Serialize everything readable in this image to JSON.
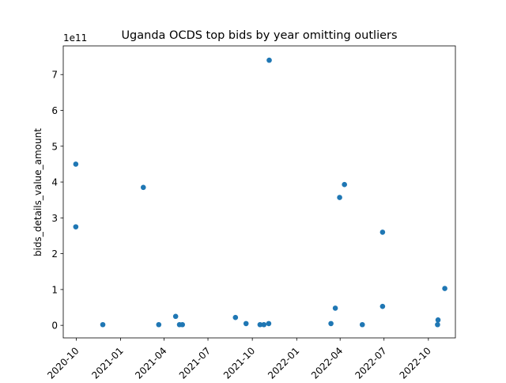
{
  "chart_data": {
    "type": "scatter",
    "title": "Uganda OCDS top bids by year omitting outliers",
    "xlabel": "",
    "ylabel": "bids_details_value_amount",
    "y_offset_label": "1e11",
    "x_tick_labels": [
      "2020-10",
      "2021-01",
      "2021-04",
      "2021-07",
      "2021-10",
      "2022-01",
      "2022-04",
      "2022-07",
      "2022-10"
    ],
    "x_ticks": [
      "2020-10-01",
      "2021-01-01",
      "2021-04-01",
      "2021-07-01",
      "2021-10-01",
      "2022-01-01",
      "2022-04-01",
      "2022-07-01",
      "2022-10-01"
    ],
    "xlim": [
      "2020-09-04",
      "2022-11-26"
    ],
    "y_tick_labels": [
      "0",
      "1",
      "2",
      "3",
      "4",
      "5",
      "6",
      "7"
    ],
    "y_ticks": [
      0,
      1,
      2,
      3,
      4,
      5,
      6,
      7
    ],
    "ylim": [
      -0.35,
      7.8
    ],
    "y_unit_multiplier": "1e11",
    "grid": false,
    "legend": null,
    "marker_color": "#1f77b4",
    "points": [
      {
        "x": "2020-09-30",
        "y": 4.5
      },
      {
        "x": "2020-09-30",
        "y": 2.75
      },
      {
        "x": "2020-11-25",
        "y": 0.02
      },
      {
        "x": "2021-02-17",
        "y": 3.85
      },
      {
        "x": "2021-03-21",
        "y": 0.02
      },
      {
        "x": "2021-04-25",
        "y": 0.25
      },
      {
        "x": "2021-05-03",
        "y": 0.02
      },
      {
        "x": "2021-05-09",
        "y": 0.02
      },
      {
        "x": "2021-08-27",
        "y": 0.22
      },
      {
        "x": "2021-09-18",
        "y": 0.05
      },
      {
        "x": "2021-10-17",
        "y": 0.02
      },
      {
        "x": "2021-10-25",
        "y": 0.02
      },
      {
        "x": "2021-11-04",
        "y": 0.05
      },
      {
        "x": "2021-11-05",
        "y": 7.4
      },
      {
        "x": "2022-03-13",
        "y": 0.05
      },
      {
        "x": "2022-03-22",
        "y": 0.48
      },
      {
        "x": "2022-03-31",
        "y": 3.57
      },
      {
        "x": "2022-04-10",
        "y": 3.93
      },
      {
        "x": "2022-05-17",
        "y": 0.02
      },
      {
        "x": "2022-06-28",
        "y": 2.6
      },
      {
        "x": "2022-06-28",
        "y": 0.53
      },
      {
        "x": "2022-10-20",
        "y": 0.02
      },
      {
        "x": "2022-10-21",
        "y": 0.15
      },
      {
        "x": "2022-11-04",
        "y": 1.03
      }
    ]
  }
}
